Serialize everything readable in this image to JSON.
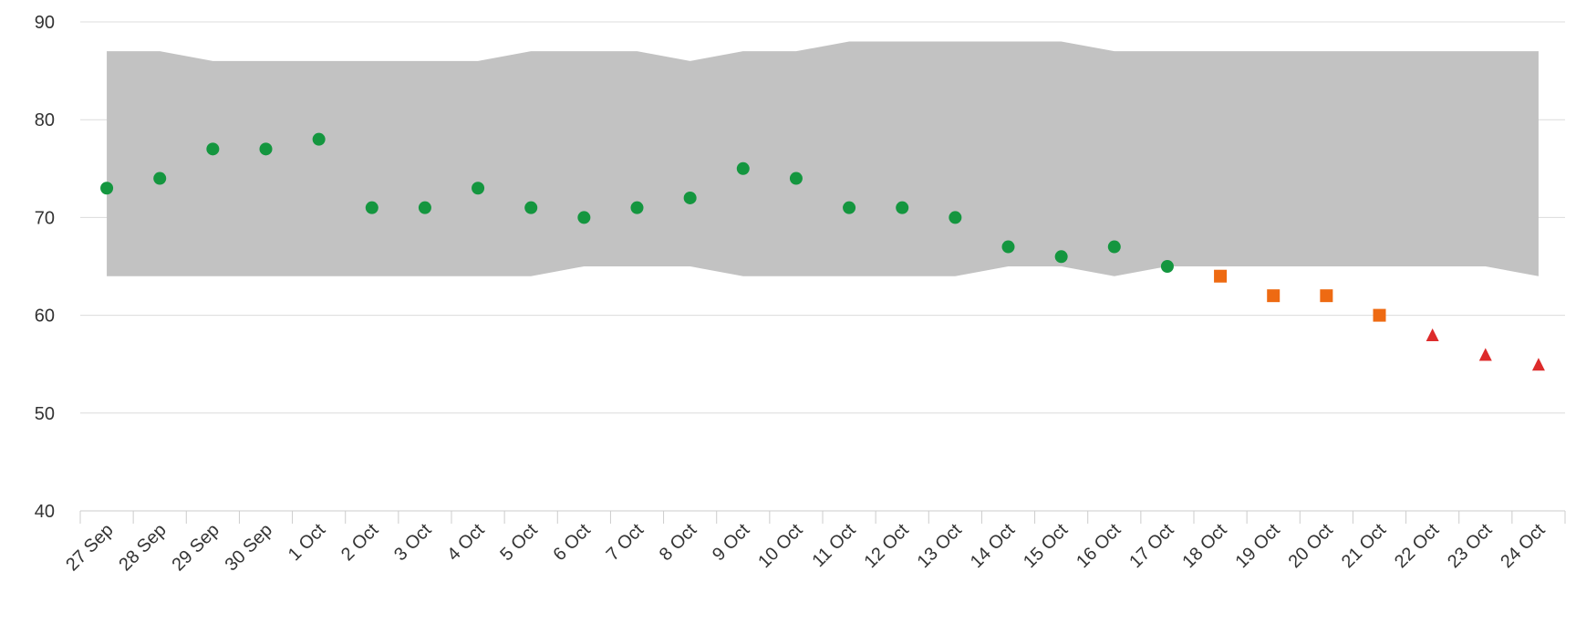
{
  "chart_data": {
    "type": "scatter",
    "title": "",
    "xlabel": "",
    "ylabel": "",
    "ylim": [
      40,
      90
    ],
    "yticks": [
      40,
      50,
      60,
      70,
      80,
      90
    ],
    "grid": true,
    "categories": [
      "27 Sep",
      "28 Sep",
      "29 Sep",
      "30 Sep",
      "1 Oct",
      "2 Oct",
      "3 Oct",
      "4 Oct",
      "5 Oct",
      "6 Oct",
      "7 Oct",
      "8 Oct",
      "9 Oct",
      "10 Oct",
      "11 Oct",
      "12 Oct",
      "13 Oct",
      "14 Oct",
      "15 Oct",
      "16 Oct",
      "17 Oct",
      "18 Oct",
      "19 Oct",
      "20 Oct",
      "21 Oct",
      "22 Oct",
      "23 Oct",
      "24 Oct"
    ],
    "band": {
      "color": "#c2c2c2",
      "upper": [
        87,
        87,
        86,
        86,
        86,
        86,
        86,
        86,
        87,
        87,
        87,
        86,
        87,
        87,
        88,
        88,
        88,
        88,
        88,
        87,
        87,
        87,
        87,
        87,
        87,
        87,
        87,
        87
      ],
      "lower": [
        64,
        64,
        64,
        64,
        64,
        64,
        64,
        64,
        64,
        65,
        65,
        65,
        64,
        64,
        64,
        64,
        64,
        65,
        65,
        64,
        65,
        65,
        65,
        65,
        65,
        65,
        65,
        64
      ]
    },
    "series": [
      {
        "marker": "circle",
        "color": "#14963f",
        "points": [
          {
            "x": "27 Sep",
            "y": 73
          },
          {
            "x": "28 Sep",
            "y": 74
          },
          {
            "x": "29 Sep",
            "y": 77
          },
          {
            "x": "30 Sep",
            "y": 77
          },
          {
            "x": "1 Oct",
            "y": 78
          },
          {
            "x": "2 Oct",
            "y": 71
          },
          {
            "x": "3 Oct",
            "y": 71
          },
          {
            "x": "4 Oct",
            "y": 73
          },
          {
            "x": "5 Oct",
            "y": 71
          },
          {
            "x": "6 Oct",
            "y": 70
          },
          {
            "x": "7 Oct",
            "y": 71
          },
          {
            "x": "8 Oct",
            "y": 72
          },
          {
            "x": "9 Oct",
            "y": 75
          },
          {
            "x": "10 Oct",
            "y": 74
          },
          {
            "x": "11 Oct",
            "y": 71
          },
          {
            "x": "12 Oct",
            "y": 71
          },
          {
            "x": "13 Oct",
            "y": 70
          },
          {
            "x": "14 Oct",
            "y": 67
          },
          {
            "x": "15 Oct",
            "y": 66
          },
          {
            "x": "16 Oct",
            "y": 67
          },
          {
            "x": "17 Oct",
            "y": 65
          }
        ]
      },
      {
        "marker": "square",
        "color": "#ee6a12",
        "points": [
          {
            "x": "18 Oct",
            "y": 64
          },
          {
            "x": "19 Oct",
            "y": 62
          },
          {
            "x": "20 Oct",
            "y": 62
          },
          {
            "x": "21 Oct",
            "y": 60
          }
        ]
      },
      {
        "marker": "triangle",
        "color": "#dd2b2b",
        "points": [
          {
            "x": "22 Oct",
            "y": 58
          },
          {
            "x": "23 Oct",
            "y": 56
          },
          {
            "x": "24 Oct",
            "y": 55
          }
        ]
      }
    ]
  }
}
